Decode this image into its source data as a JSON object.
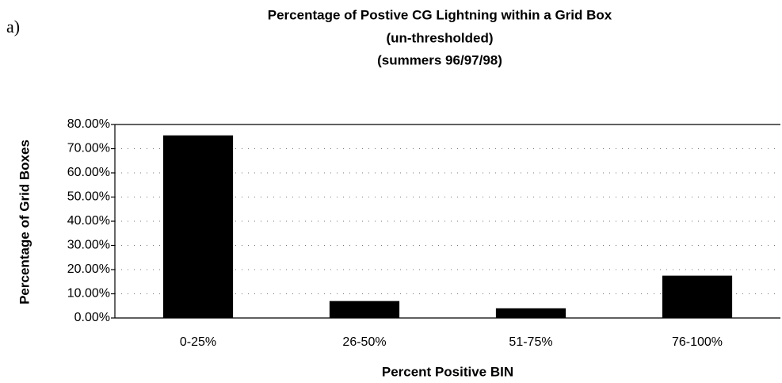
{
  "panel_label": "a)",
  "chart_data": {
    "type": "bar",
    "title": "Percentage of Postive CG Lightning within a Grid Box",
    "subtitle": [
      "(un-thresholded)",
      "(summers 96/97/98)"
    ],
    "x_label": "Percent Positive BIN",
    "y_label": "Percentage of Grid Boxes",
    "categories": [
      "0-25%",
      "26-50%",
      "51-75%",
      "76-100%"
    ],
    "values": [
      75.5,
      7,
      4,
      17.5
    ],
    "color": "#000000",
    "ylim": [
      0,
      80
    ],
    "yticks": [
      {
        "value": 0,
        "label": "0.00%"
      },
      {
        "value": 10,
        "label": "10.00%"
      },
      {
        "value": 20,
        "label": "20.00%"
      },
      {
        "value": 30,
        "label": "30.00%"
      },
      {
        "value": 40,
        "label": "40.00%"
      },
      {
        "value": 50,
        "label": "50.00%"
      },
      {
        "value": 60,
        "label": "60.00%"
      },
      {
        "value": 70,
        "label": "70.00%"
      },
      {
        "value": 80,
        "label": "80.00%"
      }
    ],
    "grid": true
  }
}
